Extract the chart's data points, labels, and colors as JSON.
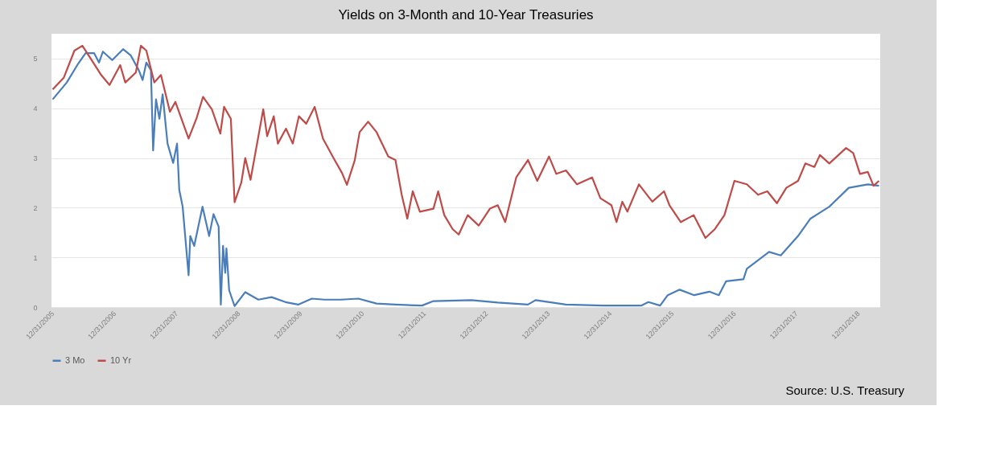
{
  "chart_data": {
    "type": "line",
    "title": "Yields on 3-Month and 10-Year Treasuries",
    "annotations": [
      "Source: U.S. Treasury"
    ],
    "xlim": [
      "2005-12-25",
      "2019-05-10"
    ],
    "xticks": [
      {
        "value": "2005-12-31",
        "label": "12/31/2005"
      },
      {
        "value": "2006-12-31",
        "label": "12/31/2006"
      },
      {
        "value": "2007-12-31",
        "label": "12/31/2007"
      },
      {
        "value": "2008-12-31",
        "label": "12/31/2008"
      },
      {
        "value": "2009-12-31",
        "label": "12/31/2009"
      },
      {
        "value": "2010-12-31",
        "label": "12/31/2010"
      },
      {
        "value": "2011-12-31",
        "label": "12/31/2011"
      },
      {
        "value": "2012-12-31",
        "label": "12/31/2012"
      },
      {
        "value": "2013-12-31",
        "label": "12/31/2013"
      },
      {
        "value": "2014-12-31",
        "label": "12/31/2014"
      },
      {
        "value": "2015-12-31",
        "label": "12/31/2015"
      },
      {
        "value": "2016-12-31",
        "label": "12/31/2016"
      },
      {
        "value": "2017-12-31",
        "label": "12/31/2017"
      },
      {
        "value": "2018-12-31",
        "label": "12/31/2018"
      }
    ],
    "ylim": [
      0,
      5.5
    ],
    "yticks": [
      0,
      1,
      2,
      3,
      4,
      5
    ],
    "grid": "y",
    "legend": "bottom",
    "marker": "none",
    "line_style": "solid",
    "series": [
      {
        "name": "3 Mo",
        "color": "#4a7ebb",
        "x": [
          "2006-01-01",
          "2006-03-25",
          "2006-05-26",
          "2006-07-14",
          "2006-09-02",
          "2006-10-01",
          "2006-10-24",
          "2006-12-18",
          "2007-02-20",
          "2007-04-07",
          "2007-05-23",
          "2007-06-15",
          "2007-07-07",
          "2007-08-03",
          "2007-08-16",
          "2007-09-02",
          "2007-09-22",
          "2007-10-11",
          "2007-11-09",
          "2007-12-12",
          "2008-01-04",
          "2008-01-17",
          "2008-02-06",
          "2008-03-12",
          "2008-03-22",
          "2008-04-14",
          "2008-06-02",
          "2008-07-11",
          "2008-08-06",
          "2008-09-05",
          "2008-09-18",
          "2008-10-01",
          "2008-10-14",
          "2008-10-21",
          "2008-11-06",
          "2008-12-08",
          "2009-02-09",
          "2009-04-27",
          "2009-07-14",
          "2009-10-04",
          "2009-12-18",
          "2010-03-08",
          "2010-05-23",
          "2010-08-26",
          "2010-12-08",
          "2011-03-25",
          "2011-07-14",
          "2011-12-18",
          "2012-02-23",
          "2012-10-04",
          "2013-03-08",
          "2013-09-02",
          "2013-10-17",
          "2014-04-14",
          "2014-11-20",
          "2015-07-01",
          "2015-08-13",
          "2015-10-21",
          "2015-12-05",
          "2016-02-13",
          "2016-05-09",
          "2016-08-06",
          "2016-10-01",
          "2016-11-13",
          "2017-02-23",
          "2017-03-15",
          "2017-07-24",
          "2017-10-01",
          "2018-01-11",
          "2018-03-25",
          "2018-07-14",
          "2018-11-06",
          "2019-02-26",
          "2019-05-03"
        ],
        "values": [
          4.18,
          4.52,
          4.87,
          5.11,
          5.11,
          4.92,
          5.14,
          4.97,
          5.19,
          5.06,
          4.77,
          4.57,
          4.92,
          4.77,
          3.15,
          4.18,
          3.79,
          4.28,
          3.29,
          2.9,
          3.29,
          2.36,
          2.02,
          0.64,
          1.43,
          1.23,
          2.02,
          1.43,
          1.87,
          1.62,
          0.05,
          1.23,
          0.69,
          1.18,
          0.34,
          0.02,
          0.3,
          0.15,
          0.2,
          0.1,
          0.05,
          0.17,
          0.15,
          0.15,
          0.17,
          0.07,
          0.05,
          0.03,
          0.12,
          0.14,
          0.09,
          0.05,
          0.14,
          0.05,
          0.03,
          0.03,
          0.1,
          0.03,
          0.24,
          0.35,
          0.24,
          0.31,
          0.24,
          0.52,
          0.56,
          0.77,
          1.11,
          1.04,
          1.43,
          1.78,
          2.02,
          2.4,
          2.47,
          2.44
        ]
      },
      {
        "name": "10 Yr",
        "color": "#be4b48",
        "x": [
          "2006-01-01",
          "2006-03-08",
          "2006-05-09",
          "2006-06-25",
          "2006-08-13",
          "2006-10-14",
          "2006-12-02",
          "2007-02-03",
          "2007-03-05",
          "2007-05-06",
          "2007-06-05",
          "2007-07-07",
          "2007-08-23",
          "2007-10-01",
          "2007-11-23",
          "2007-12-25",
          "2008-03-12",
          "2008-04-27",
          "2008-06-05",
          "2008-07-27",
          "2008-09-15",
          "2008-10-07",
          "2008-11-16",
          "2008-12-08",
          "2009-01-17",
          "2009-02-09",
          "2009-03-12",
          "2009-05-26",
          "2009-06-18",
          "2009-07-27",
          "2009-08-20",
          "2009-10-07",
          "2009-11-16",
          "2009-12-22",
          "2010-02-03",
          "2010-03-25",
          "2010-05-13",
          "2010-07-14",
          "2010-09-02",
          "2010-10-01",
          "2010-11-16",
          "2010-12-15",
          "2011-02-03",
          "2011-03-25",
          "2011-06-02",
          "2011-07-14",
          "2011-08-20",
          "2011-09-22",
          "2011-10-24",
          "2011-12-05",
          "2012-02-23",
          "2012-03-22",
          "2012-04-27",
          "2012-06-15",
          "2012-07-21",
          "2012-09-12",
          "2012-11-16",
          "2013-01-21",
          "2013-03-08",
          "2013-04-21",
          "2013-06-25",
          "2013-09-02",
          "2013-10-27",
          "2014-01-04",
          "2014-02-16",
          "2014-04-14",
          "2014-06-18",
          "2014-09-15",
          "2014-11-03",
          "2015-01-07",
          "2015-02-06",
          "2015-03-12",
          "2015-04-11",
          "2015-06-18",
          "2015-09-05",
          "2015-11-13",
          "2015-12-15",
          "2016-02-20",
          "2016-05-06",
          "2016-07-14",
          "2016-09-08",
          "2016-11-03",
          "2017-01-01",
          "2017-03-15",
          "2017-05-20",
          "2017-07-14",
          "2017-09-08",
          "2017-11-03",
          "2018-01-11",
          "2018-02-23",
          "2018-04-17",
          "2018-05-20",
          "2018-07-14",
          "2018-10-21",
          "2018-12-02",
          "2019-01-11",
          "2019-02-26",
          "2019-04-01",
          "2019-05-03"
        ],
        "values": [
          4.38,
          4.62,
          5.16,
          5.26,
          5.0,
          4.67,
          4.47,
          4.87,
          4.52,
          4.72,
          5.26,
          5.16,
          4.52,
          4.67,
          3.93,
          4.13,
          3.39,
          3.79,
          4.23,
          3.98,
          3.49,
          4.03,
          3.79,
          2.11,
          2.51,
          3.0,
          2.56,
          3.98,
          3.44,
          3.84,
          3.29,
          3.59,
          3.29,
          3.84,
          3.69,
          4.03,
          3.39,
          3.0,
          2.7,
          2.46,
          2.95,
          3.52,
          3.73,
          3.52,
          3.03,
          2.96,
          2.26,
          1.78,
          2.33,
          1.92,
          1.98,
          2.33,
          1.85,
          1.57,
          1.46,
          1.85,
          1.64,
          1.98,
          2.05,
          1.71,
          2.61,
          2.96,
          2.54,
          3.03,
          2.68,
          2.75,
          2.47,
          2.61,
          2.19,
          2.05,
          1.71,
          2.12,
          1.92,
          2.47,
          2.12,
          2.33,
          2.05,
          1.71,
          1.85,
          1.39,
          1.57,
          1.85,
          2.54,
          2.47,
          2.26,
          2.33,
          2.09,
          2.4,
          2.54,
          2.89,
          2.82,
          3.06,
          2.89,
          3.2,
          3.1,
          2.68,
          2.72,
          2.44,
          2.54
        ]
      }
    ]
  }
}
